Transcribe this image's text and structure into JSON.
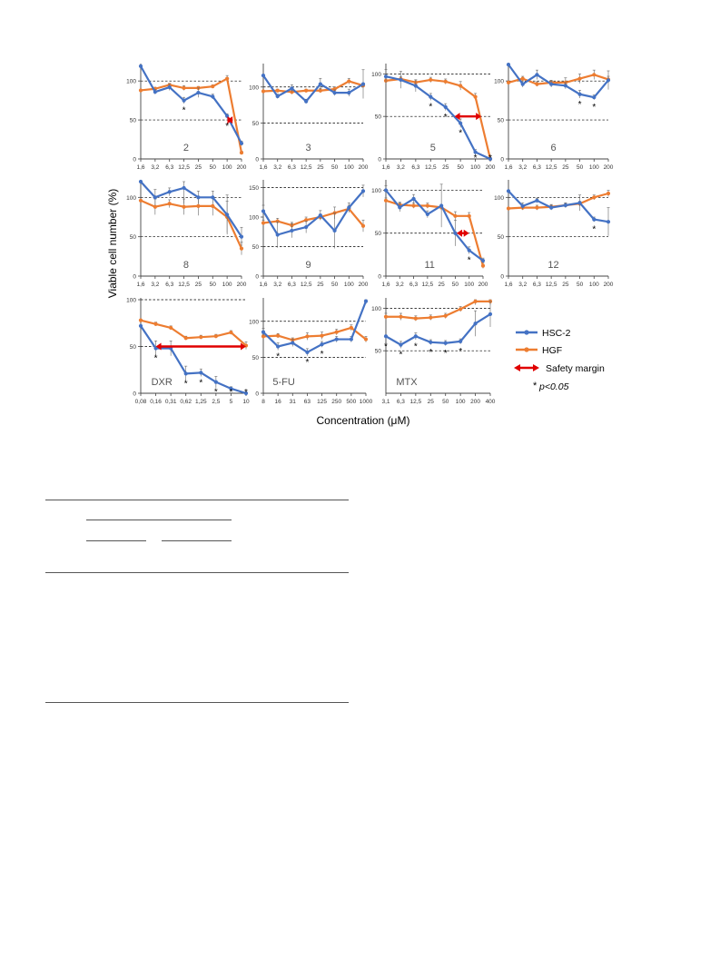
{
  "figure": {
    "ylabel": "Viable cell number (%)",
    "xlabel": "Concentration (μM)",
    "colors": {
      "hsc2": "#4472C4",
      "hgf": "#ED7D31",
      "safety": "#E00000",
      "ref": "#000000"
    },
    "legend": {
      "hsc2": "HSC-2",
      "hgf": "HGF",
      "safety": "Safety margin",
      "sig_star": "*",
      "sig_text": "p<0.05"
    }
  },
  "chart_data": [
    {
      "type": "line",
      "label": "2",
      "categories": [
        "1,6",
        "3,2",
        "6,3",
        "12,5",
        "25",
        "50",
        "100",
        "200"
      ],
      "ylim": [
        0,
        120
      ],
      "yticks": [
        0,
        50,
        100
      ],
      "refline": [
        50,
        100
      ],
      "series": [
        {
          "name": "HSC-2",
          "values": [
            119,
            86,
            92,
            75,
            85,
            80,
            55,
            20
          ],
          "err": [
            0,
            3,
            4,
            4,
            6,
            3,
            3,
            3
          ]
        },
        {
          "name": "HGF",
          "values": [
            88,
            90,
            95,
            91,
            91,
            93,
            103,
            8
          ],
          "err": [
            0,
            2,
            2,
            3,
            2,
            2,
            4,
            2
          ]
        }
      ],
      "stars": [
        3,
        6
      ],
      "safety": [
        6,
        6.4
      ]
    },
    {
      "type": "line",
      "label": "3",
      "categories": [
        "1,6",
        "3,2",
        "6,3",
        "12,5",
        "25",
        "50",
        "100",
        "200"
      ],
      "ylim": [
        0,
        130
      ],
      "yticks": [
        0,
        50,
        100
      ],
      "refline": [
        50,
        100
      ],
      "series": [
        {
          "name": "HSC-2",
          "values": [
            116,
            87,
            98,
            80,
            104,
            92,
            92,
            104
          ],
          "err": [
            0,
            3,
            5,
            3,
            8,
            4,
            5,
            20
          ]
        },
        {
          "name": "HGF",
          "values": [
            94,
            95,
            93,
            95,
            95,
            97,
            108,
            102
          ],
          "err": [
            0,
            2,
            3,
            2,
            3,
            3,
            4,
            3
          ]
        }
      ],
      "stars": [],
      "safety": null
    },
    {
      "type": "line",
      "label": "5",
      "categories": [
        "1,6",
        "3,2",
        "6,3",
        "12,5",
        "25",
        "50",
        "100",
        "200"
      ],
      "ylim": [
        0,
        110
      ],
      "yticks": [
        0,
        50,
        100
      ],
      "refline": [
        50,
        100
      ],
      "series": [
        {
          "name": "HSC-2",
          "values": [
            97,
            93,
            86,
            73,
            61,
            42,
            8,
            0
          ],
          "err": [
            8,
            10,
            7,
            4,
            4,
            5,
            3,
            0
          ]
        },
        {
          "name": "HGF",
          "values": [
            92,
            94,
            90,
            93,
            91,
            86,
            73,
            0
          ],
          "err": [
            3,
            3,
            3,
            3,
            3,
            5,
            4,
            0
          ]
        }
      ],
      "stars": [
        3,
        4,
        5,
        6,
        7
      ],
      "safety": [
        4.6,
        6.4
      ]
    },
    {
      "type": "line",
      "label": "6",
      "categories": [
        "1,6",
        "3,2",
        "6,3",
        "12,5",
        "25",
        "50",
        "100",
        "200"
      ],
      "ylim": [
        0,
        120
      ],
      "yticks": [
        0,
        50,
        100
      ],
      "refline": [
        50,
        100
      ],
      "series": [
        {
          "name": "HSC-2",
          "values": [
            121,
            96,
            108,
            96,
            94,
            83,
            79,
            101
          ],
          "err": [
            0,
            4,
            6,
            4,
            4,
            5,
            3,
            12
          ]
        },
        {
          "name": "HGF",
          "values": [
            98,
            103,
            96,
            98,
            98,
            103,
            108,
            102
          ],
          "err": [
            0,
            3,
            3,
            3,
            6,
            6,
            6,
            4
          ]
        }
      ],
      "stars": [
        5,
        6
      ],
      "safety": null
    },
    {
      "type": "line",
      "label": "8",
      "categories": [
        "1,6",
        "3,2",
        "6,3",
        "12,5",
        "25",
        "50",
        "100",
        "200"
      ],
      "ylim": [
        0,
        120
      ],
      "yticks": [
        0,
        50,
        100
      ],
      "refline": [
        50,
        100
      ],
      "series": [
        {
          "name": "HSC-2",
          "values": [
            120,
            100,
            107,
            112,
            100,
            100,
            78,
            50
          ],
          "err": [
            0,
            10,
            5,
            20,
            8,
            8,
            25,
            12
          ]
        },
        {
          "name": "HGF",
          "values": [
            96,
            88,
            92,
            88,
            89,
            89,
            75,
            35
          ],
          "err": [
            0,
            10,
            5,
            10,
            12,
            12,
            20,
            8
          ]
        }
      ],
      "stars": [],
      "safety": null
    },
    {
      "type": "line",
      "label": "9",
      "categories": [
        "1,6",
        "3,2",
        "6,3",
        "12,5",
        "25",
        "50",
        "100",
        "200"
      ],
      "ylim": [
        0,
        160
      ],
      "yticks": [
        0,
        50,
        100,
        150
      ],
      "refline": [
        50,
        150
      ],
      "series": [
        {
          "name": "HSC-2",
          "values": [
            110,
            70,
            77,
            83,
            103,
            77,
            116,
            144
          ],
          "err": [
            10,
            22,
            12,
            10,
            8,
            30,
            8,
            10
          ]
        },
        {
          "name": "HGF",
          "values": [
            90,
            93,
            86,
            95,
            100,
            107,
            114,
            85
          ],
          "err": [
            5,
            5,
            5,
            5,
            5,
            10,
            6,
            10
          ]
        }
      ],
      "stars": [],
      "safety": null
    },
    {
      "type": "line",
      "label": "11",
      "categories": [
        "1,6",
        "3,2",
        "6,3",
        "12,5",
        "25",
        "50",
        "100",
        "200"
      ],
      "ylim": [
        0,
        110
      ],
      "yticks": [
        0,
        50,
        100
      ],
      "refline": [
        50,
        100
      ],
      "series": [
        {
          "name": "HSC-2",
          "values": [
            100,
            80,
            90,
            72,
            82,
            50,
            30,
            18
          ],
          "err": [
            5,
            5,
            5,
            4,
            25,
            15,
            4,
            3
          ]
        },
        {
          "name": "HGF",
          "values": [
            88,
            83,
            82,
            82,
            80,
            70,
            70,
            12
          ],
          "err": [
            3,
            3,
            3,
            3,
            3,
            5,
            4,
            3
          ]
        }
      ],
      "stars": [
        6
      ],
      "safety": [
        5.1,
        6.0
      ]
    },
    {
      "type": "line",
      "label": "12",
      "categories": [
        "1,6",
        "3,2",
        "6,3",
        "12,5",
        "25",
        "50",
        "100",
        "200"
      ],
      "ylim": [
        0,
        120
      ],
      "yticks": [
        0,
        50,
        100
      ],
      "refline": [
        50,
        100
      ],
      "series": [
        {
          "name": "HSC-2",
          "values": [
            108,
            89,
            96,
            87,
            90,
            93,
            72,
            69
          ],
          "err": [
            0,
            4,
            3,
            3,
            3,
            10,
            3,
            18
          ]
        },
        {
          "name": "HGF",
          "values": [
            86,
            87,
            87,
            88,
            90,
            92,
            100,
            105
          ],
          "err": [
            0,
            3,
            3,
            3,
            3,
            3,
            3,
            4
          ]
        }
      ],
      "stars": [
        6
      ],
      "safety": null
    },
    {
      "type": "line",
      "label": "DXR",
      "categories": [
        "0,08",
        "0,16",
        "0,31",
        "0,62",
        "1,25",
        "2,5",
        "5",
        "10"
      ],
      "ylim": [
        0,
        100
      ],
      "yticks": [
        0,
        50,
        100
      ],
      "refline": [
        50,
        100
      ],
      "series": [
        {
          "name": "HSC-2",
          "values": [
            72,
            48,
            48,
            21,
            22,
            12,
            5,
            0
          ],
          "err": [
            0,
            8,
            8,
            8,
            4,
            6,
            2,
            0
          ]
        },
        {
          "name": "HGF",
          "values": [
            78,
            74,
            70,
            59,
            60,
            61,
            65,
            51
          ],
          "err": [
            0,
            2,
            2,
            2,
            2,
            2,
            2,
            4
          ]
        }
      ],
      "stars": [
        1,
        3,
        4,
        5,
        6,
        7
      ],
      "safety": [
        1.0,
        7.0
      ]
    },
    {
      "type": "line",
      "label": "5-FU",
      "categories": [
        "8",
        "16",
        "31",
        "63",
        "125",
        "250",
        "500",
        "1000"
      ],
      "ylim": [
        0,
        130
      ],
      "yticks": [
        0,
        50,
        100
      ],
      "refline": [
        50,
        100
      ],
      "series": [
        {
          "name": "HSC-2",
          "values": [
            85,
            65,
            70,
            57,
            68,
            75,
            75,
            128
          ],
          "err": [
            5,
            5,
            5,
            5,
            4,
            4,
            4,
            4
          ]
        },
        {
          "name": "HGF",
          "values": [
            79,
            80,
            74,
            79,
            80,
            85,
            91,
            75
          ],
          "err": [
            3,
            3,
            3,
            5,
            5,
            4,
            4,
            4
          ]
        }
      ],
      "stars": [
        1,
        3,
        4
      ],
      "safety": null
    },
    {
      "type": "line",
      "label": "MTX",
      "categories": [
        "3,1",
        "6,3",
        "12,5",
        "25",
        "50",
        "100",
        "200",
        "400"
      ],
      "ylim": [
        0,
        110
      ],
      "yticks": [
        50,
        100
      ],
      "refline": [
        50,
        100
      ],
      "series": [
        {
          "name": "HSC-2",
          "values": [
            67,
            57,
            67,
            60,
            59,
            61,
            82,
            93
          ],
          "err": [
            0,
            4,
            4,
            3,
            3,
            3,
            15,
            15
          ]
        },
        {
          "name": "HGF",
          "values": [
            90,
            90,
            88,
            89,
            91,
            99,
            108,
            108
          ],
          "err": [
            4,
            4,
            3,
            3,
            3,
            3,
            4,
            4
          ]
        }
      ],
      "stars": [
        0,
        1,
        2,
        3,
        4,
        5
      ],
      "safety": null
    }
  ]
}
